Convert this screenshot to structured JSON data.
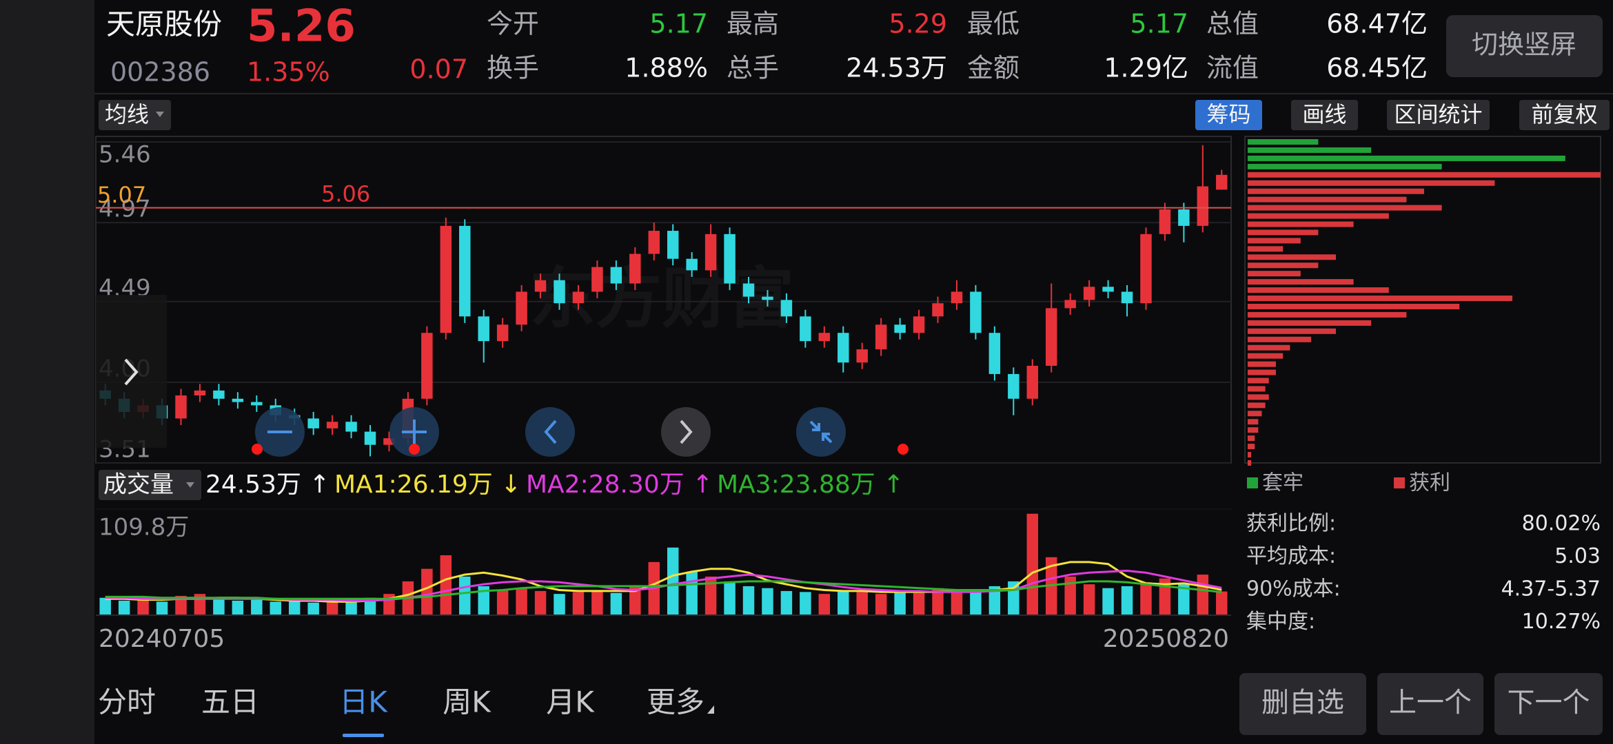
{
  "quote": {
    "name": "天原股份",
    "price": 5.26,
    "code": "002386",
    "change_pct": "1.35%",
    "change": 0.07,
    "switch_button": "切换竖屏",
    "fields": [
      {
        "label": "今开",
        "value": 5.17,
        "color": "#2ec73f"
      },
      {
        "label": "最高",
        "value": 5.29,
        "color": "#e8323a"
      },
      {
        "label": "最低",
        "value": 5.17,
        "color": "#2ec73f"
      },
      {
        "label": "总值",
        "value": "68.47亿",
        "color": "#f0f0f0"
      },
      {
        "label": "换手",
        "value": "1.88%",
        "color": "#f0f0f0"
      },
      {
        "label": "总手",
        "value": "24.53万",
        "color": "#f0f0f0"
      },
      {
        "label": "金额",
        "value": "1.29亿",
        "color": "#f0f0f0"
      },
      {
        "label": "流值",
        "value": "68.45亿",
        "color": "#f0f0f0"
      }
    ]
  },
  "toolbar": {
    "indicator": "均线",
    "buttons": [
      {
        "label": "筹码",
        "active": true
      },
      {
        "label": "画线",
        "active": false
      },
      {
        "label": "区间统计",
        "active": false
      },
      {
        "label": "前复权",
        "active": false
      }
    ]
  },
  "chart_data": {
    "type": "candlestick",
    "up_color": "#e8323a",
    "down_color": "#31d8e0",
    "watermark": "东方财富",
    "ylim": [
      3.51,
      5.46
    ],
    "yticks": [
      5.46,
      4.97,
      4.49,
      {
        "value": 4,
        "label": "4.00"
      },
      3.51
    ],
    "price_line": 5.06,
    "cursor_price": 5.07,
    "ohlc": [
      [
        3.95,
        3.99,
        3.86,
        3.9
      ],
      [
        3.9,
        3.94,
        3.78,
        3.82
      ],
      [
        3.82,
        3.9,
        3.78,
        3.86
      ],
      [
        3.86,
        3.9,
        3.74,
        3.78
      ],
      [
        3.78,
        3.96,
        3.74,
        3.92
      ],
      [
        3.92,
        3.99,
        3.88,
        3.95
      ],
      [
        3.95,
        3.99,
        3.86,
        3.9
      ],
      [
        3.9,
        3.94,
        3.84,
        3.88
      ],
      [
        3.88,
        3.92,
        3.82,
        3.86
      ],
      [
        3.86,
        3.9,
        3.76,
        3.8
      ],
      [
        3.8,
        3.84,
        3.74,
        3.78
      ],
      [
        3.78,
        3.82,
        3.68,
        3.72
      ],
      [
        3.72,
        3.8,
        3.68,
        3.76
      ],
      [
        3.76,
        3.8,
        3.66,
        3.7
      ],
      [
        3.7,
        3.74,
        3.55,
        3.62
      ],
      [
        3.62,
        3.7,
        3.58,
        3.66
      ],
      [
        3.66,
        3.94,
        3.62,
        3.9
      ],
      [
        3.9,
        4.34,
        3.86,
        4.3
      ],
      [
        4.3,
        5.0,
        4.26,
        4.95
      ],
      [
        4.95,
        4.99,
        4.36,
        4.4
      ],
      [
        4.4,
        4.44,
        4.12,
        4.25
      ],
      [
        4.25,
        4.39,
        4.21,
        4.35
      ],
      [
        4.35,
        4.59,
        4.31,
        4.55
      ],
      [
        4.55,
        4.66,
        4.51,
        4.62
      ],
      [
        4.62,
        4.66,
        4.44,
        4.48
      ],
      [
        4.48,
        4.59,
        4.44,
        4.55
      ],
      [
        4.55,
        4.74,
        4.51,
        4.7
      ],
      [
        4.7,
        4.74,
        4.56,
        4.6
      ],
      [
        4.6,
        4.82,
        4.56,
        4.78
      ],
      [
        4.78,
        4.97,
        4.74,
        4.92
      ],
      [
        4.92,
        4.96,
        4.71,
        4.75
      ],
      [
        4.75,
        4.79,
        4.64,
        4.68
      ],
      [
        4.68,
        4.96,
        4.64,
        4.9
      ],
      [
        4.9,
        4.94,
        4.56,
        4.6
      ],
      [
        4.6,
        4.64,
        4.48,
        4.52
      ],
      [
        4.52,
        4.56,
        4.46,
        4.5
      ],
      [
        4.5,
        4.54,
        4.36,
        4.4
      ],
      [
        4.4,
        4.44,
        4.21,
        4.25
      ],
      [
        4.25,
        4.34,
        4.21,
        4.3
      ],
      [
        4.3,
        4.34,
        4.06,
        4.12
      ],
      [
        4.12,
        4.24,
        4.08,
        4.2
      ],
      [
        4.2,
        4.39,
        4.16,
        4.35
      ],
      [
        4.35,
        4.39,
        4.26,
        4.3
      ],
      [
        4.3,
        4.44,
        4.26,
        4.4
      ],
      [
        4.4,
        4.52,
        4.36,
        4.48
      ],
      [
        4.48,
        4.62,
        4.44,
        4.55
      ],
      [
        4.55,
        4.59,
        4.26,
        4.3
      ],
      [
        4.3,
        4.34,
        4.01,
        4.05
      ],
      [
        4.05,
        4.09,
        3.8,
        3.9
      ],
      [
        3.9,
        4.14,
        3.86,
        4.1
      ],
      [
        4.1,
        4.6,
        4.06,
        4.45
      ],
      [
        4.45,
        4.54,
        4.41,
        4.5
      ],
      [
        4.5,
        4.62,
        4.46,
        4.58
      ],
      [
        4.58,
        4.62,
        4.51,
        4.55
      ],
      [
        4.55,
        4.59,
        4.4,
        4.48
      ],
      [
        4.48,
        4.94,
        4.44,
        4.9
      ],
      [
        4.9,
        5.09,
        4.86,
        5.05
      ],
      [
        5.05,
        5.09,
        4.85,
        4.95
      ],
      [
        4.95,
        5.44,
        4.91,
        5.19
      ],
      [
        5.17,
        5.29,
        5.17,
        5.26
      ]
    ],
    "dates": [
      "20240705",
      "20250820"
    ],
    "volume": {
      "button": "成交量",
      "header": [
        {
          "text": "24.53万 ↑",
          "color": "#f4f4f4"
        },
        {
          "text": "MA1:26.19万 ↓",
          "color": "#f3e23c"
        },
        {
          "text": "MA2:28.30万 ↑",
          "color": "#e03be0"
        },
        {
          "text": "MA3:23.88万 ↑",
          "color": "#2fb52f"
        }
      ],
      "ylim": [
        0,
        109.8
      ],
      "yticks": [
        {
          "value": 109.8,
          "label": "109.8万"
        }
      ],
      "values": [
        18,
        15,
        16,
        14,
        20,
        22,
        17,
        15,
        16,
        14,
        15,
        13,
        14,
        16,
        18,
        22,
        35,
        48,
        62,
        40,
        30,
        26,
        28,
        25,
        22,
        24,
        26,
        23,
        30,
        55,
        70,
        45,
        40,
        35,
        30,
        28,
        25,
        24,
        22,
        26,
        24,
        22,
        25,
        23,
        28,
        26,
        24,
        30,
        35,
        105,
        60,
        40,
        32,
        28,
        30,
        34,
        38,
        32,
        42,
        24.53
      ],
      "ma": [
        {
          "color": "#f3e23c",
          "values": [
            17,
            17,
            16,
            16,
            17,
            17,
            18,
            18,
            17,
            16,
            15,
            15,
            14,
            14,
            15,
            17,
            21,
            28,
            37,
            42,
            44,
            41,
            37,
            30,
            26,
            25,
            25,
            25,
            25,
            32,
            41,
            45,
            48,
            48,
            44,
            36,
            32,
            28,
            26,
            25,
            25,
            24,
            24,
            24,
            24,
            25,
            25,
            26,
            28,
            44,
            51,
            55,
            55,
            53,
            40,
            33,
            32,
            33,
            30,
            26.19
          ]
        },
        {
          "color": "#e03be0",
          "values": [
            18,
            18,
            17,
            17,
            17,
            17,
            17,
            17,
            17,
            17,
            16,
            16,
            16,
            15,
            15,
            16,
            18,
            21,
            25,
            29,
            32,
            34,
            35,
            35,
            34,
            32,
            30,
            27,
            26,
            28,
            32,
            35,
            38,
            40,
            42,
            40,
            37,
            34,
            32,
            29,
            27,
            26,
            25,
            25,
            24,
            24,
            24,
            25,
            26,
            33,
            38,
            42,
            44,
            45,
            46,
            44,
            40,
            36,
            32,
            28.3
          ]
        },
        {
          "color": "#2fb52f",
          "values": [
            19,
            19,
            19,
            18,
            18,
            18,
            18,
            18,
            18,
            17,
            17,
            17,
            17,
            17,
            17,
            17,
            18,
            19,
            21,
            23,
            25,
            26,
            28,
            29,
            30,
            30,
            30,
            30,
            30,
            30,
            31,
            32,
            33,
            34,
            35,
            35,
            35,
            34,
            33,
            32,
            31,
            30,
            29,
            28,
            27,
            26,
            26,
            26,
            26,
            29,
            31,
            33,
            35,
            35,
            34,
            32,
            30,
            28,
            26,
            23.88
          ]
        }
      ]
    },
    "chips": {
      "xlim": [
        0,
        100
      ],
      "series": [
        {
          "name": "套牢",
          "color": "#22a33a",
          "prices": [
            5.46,
            5.41,
            5.36,
            5.31
          ],
          "values": [
            20,
            35,
            90,
            55
          ]
        },
        {
          "name": "获利",
          "color": "#d8383c",
          "prices": [
            5.26,
            5.21,
            5.16,
            5.11,
            5.06,
            5.01,
            4.96,
            4.91,
            4.86,
            4.81,
            4.76,
            4.71,
            4.66,
            4.61,
            4.56,
            4.51,
            4.46,
            4.41,
            4.36,
            4.31,
            4.26,
            4.21,
            4.16,
            4.11,
            4.06,
            4.01,
            3.96,
            3.91,
            3.86,
            3.81,
            3.76,
            3.71,
            3.66,
            3.61,
            3.56,
            3.51
          ],
          "values": [
            100,
            70,
            50,
            45,
            55,
            40,
            30,
            20,
            15,
            10,
            25,
            20,
            15,
            30,
            40,
            75,
            60,
            45,
            35,
            25,
            18,
            12,
            10,
            8,
            8,
            6,
            5,
            6,
            5,
            4,
            3,
            3,
            2,
            2,
            1,
            1
          ]
        }
      ],
      "stats": [
        {
          "label": "获利比例:",
          "value": "80.02%"
        },
        {
          "label": "平均成本:",
          "value": "5.03"
        },
        {
          "label": "90%成本:",
          "value": "4.37-5.37"
        },
        {
          "label": "集中度:",
          "value": "10.27%"
        }
      ]
    }
  },
  "tabs": [
    {
      "label": "分时",
      "active": false
    },
    {
      "label": "五日",
      "active": false
    },
    {
      "label": "日K",
      "active": true
    },
    {
      "label": "周K",
      "active": false
    },
    {
      "label": "月K",
      "active": false
    },
    {
      "label": "更多",
      "active": false
    }
  ],
  "actions": [
    "删自选",
    "上一个",
    "下一个"
  ]
}
